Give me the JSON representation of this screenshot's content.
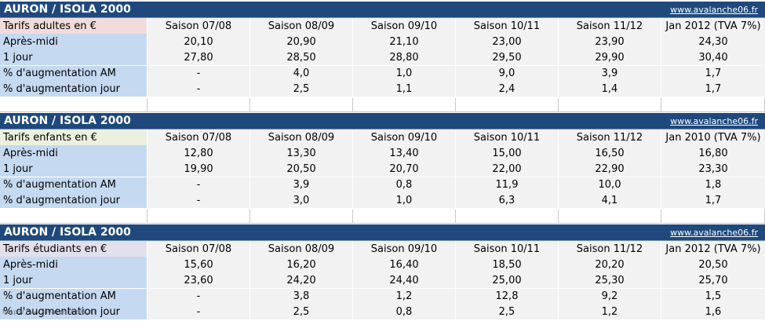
{
  "site": "www.avalanche06.fr",
  "columns": [
    "Saison 07/08",
    "Saison 08/09",
    "Saison 09/10",
    "Saison 10/11",
    "Saison 11/12"
  ],
  "tables": [
    {
      "title": "AURON / ISOLA 2000",
      "category": "Tarifs adultes en €",
      "last_col": "Jan 2012 (TVA 7%)",
      "rows": [
        {
          "label": "Après-midi",
          "values": [
            "20,10",
            "20,90",
            "21,10",
            "23,00",
            "23,90",
            "24,30"
          ]
        },
        {
          "label": "1 jour",
          "values": [
            "27,80",
            "28,50",
            "28,80",
            "29,50",
            "29,90",
            "30,40"
          ]
        },
        {
          "label": "% d'augmentation AM",
          "values": [
            "-",
            "4,0",
            "1,0",
            "9,0",
            "3,9",
            "1,7"
          ]
        },
        {
          "label": "% d'augmentation jour",
          "values": [
            "-",
            "2,5",
            "1,1",
            "2,4",
            "1,4",
            "1,7"
          ]
        }
      ]
    },
    {
      "title": "AURON / ISOLA 2000",
      "category": "Tarifs enfants en €",
      "last_col": "Jan 2010 (TVA 7%)",
      "rows": [
        {
          "label": "Après-midi",
          "values": [
            "12,80",
            "13,30",
            "13,40",
            "15,00",
            "16,50",
            "16,80"
          ]
        },
        {
          "label": "1 jour",
          "values": [
            "19,90",
            "20,50",
            "20,70",
            "22,00",
            "22,90",
            "23,30"
          ]
        },
        {
          "label": "% d'augmentation AM",
          "values": [
            "-",
            "3,9",
            "0,8",
            "11,9",
            "10,0",
            "1,8"
          ]
        },
        {
          "label": "% d'augmentation jour",
          "values": [
            "-",
            "3,0",
            "1,0",
            "6,3",
            "4,1",
            "1,7"
          ]
        }
      ]
    },
    {
      "title": "AURON / ISOLA 2000",
      "category": "Tarifs étudiants en €",
      "last_col": "Jan 2012 (TVA 7%)",
      "rows": [
        {
          "label": "Après-midi",
          "values": [
            "15,60",
            "16,20",
            "16,40",
            "18,50",
            "20,20",
            "20,50"
          ]
        },
        {
          "label": "1 jour",
          "values": [
            "23,60",
            "24,20",
            "24,40",
            "25,00",
            "25,30",
            "25,70"
          ]
        },
        {
          "label": "% d'augmentation AM",
          "values": [
            "-",
            "3,8",
            "1,2",
            "12,8",
            "9,2",
            "1,5"
          ]
        },
        {
          "label": "% d'augmentation jour",
          "values": [
            "-",
            "2,5",
            "0,8",
            "2,5",
            "1,2",
            "1,6"
          ]
        }
      ]
    }
  ],
  "watermark": "http://www.avalanche06.fr"
}
